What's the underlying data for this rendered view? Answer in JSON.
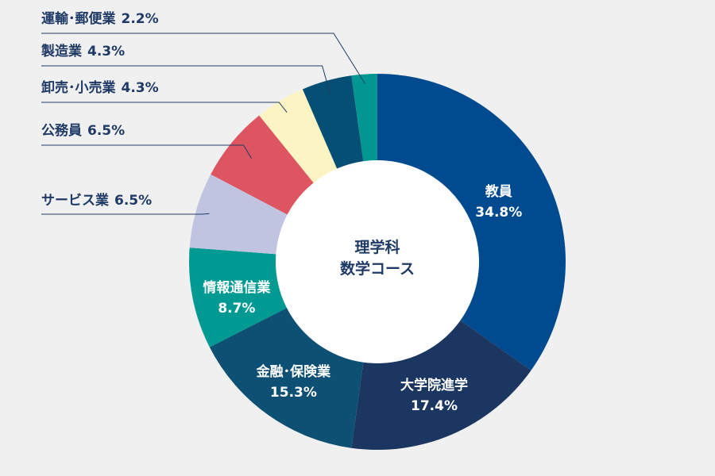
{
  "chart_data": {
    "type": "pie",
    "variant": "donut",
    "center_label": [
      "理学科",
      "数学コース"
    ],
    "slices": [
      {
        "label": "教員",
        "value": 34.8,
        "value_text": "34.8%",
        "color": "#004a8f",
        "label_position": "inside"
      },
      {
        "label": "大学院進学",
        "value": 17.4,
        "value_text": "17.4%",
        "color": "#1b3660",
        "label_position": "inside"
      },
      {
        "label": "金融･保険業",
        "value": 15.3,
        "value_text": "15.3%",
        "color": "#0d5073",
        "label_position": "inside"
      },
      {
        "label": "情報通信業",
        "value": 8.7,
        "value_text": "8.7%",
        "color": "#009a92",
        "label_position": "inside"
      },
      {
        "label": "サービス業",
        "value": 6.5,
        "value_text": "6.5%",
        "color": "#c0c4e0",
        "label_position": "outside"
      },
      {
        "label": "公務員",
        "value": 6.5,
        "value_text": "6.5%",
        "color": "#dd5560",
        "label_position": "outside"
      },
      {
        "label": "卸売･小売業",
        "value": 4.3,
        "value_text": "4.3%",
        "color": "#fcf5c3",
        "label_position": "outside"
      },
      {
        "label": "製造業",
        "value": 4.3,
        "value_text": "4.3%",
        "color": "#064f74",
        "label_position": "outside"
      },
      {
        "label": "運輸･郵便業",
        "value": 2.2,
        "value_text": "2.2%",
        "color": "#019790",
        "label_position": "outside"
      }
    ],
    "start_angle": "12 o'clock",
    "direction": "clockwise",
    "background": "#f0f0f0",
    "text_color": "#1f3a66"
  }
}
